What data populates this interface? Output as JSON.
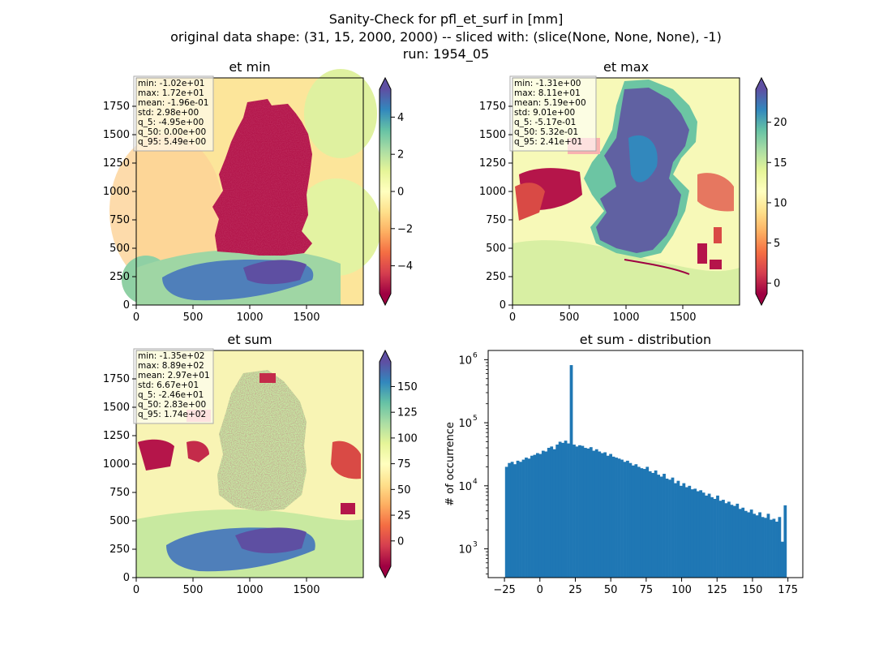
{
  "figure": {
    "title_lines": [
      "Sanity-Check for pfl_et_surf in [mm]",
      "original data shape: (31, 15, 2000, 2000) -- sliced with: (slice(None, None, None), -1)",
      "run: 1954_05"
    ]
  },
  "colors": {
    "bar": "#1f77b4",
    "colormap": "Spectral",
    "colormap_stops": [
      "#9e0142",
      "#d53e4f",
      "#f46d43",
      "#fdae61",
      "#fee08b",
      "#ffffbf",
      "#e6f598",
      "#abdda4",
      "#66c2a5",
      "#3288bd",
      "#5e4fa2"
    ]
  },
  "chart_data": [
    {
      "type": "heatmap",
      "title": "et min",
      "x_ticks": [
        "0",
        "500",
        "1000",
        "1500"
      ],
      "y_ticks": [
        "0",
        "250",
        "500",
        "750",
        "1000",
        "1250",
        "1500",
        "1750"
      ],
      "xlim": [
        0,
        2000
      ],
      "ylim": [
        0,
        2000
      ],
      "colorbar": {
        "ticks": [
          "−4",
          "−2",
          "0",
          "2",
          "4"
        ],
        "tick_values": [
          -4,
          -2,
          0,
          2,
          4
        ],
        "range": [
          -5.5,
          5.5
        ],
        "extend": "both"
      },
      "stats": [
        "min: -1.02e+01",
        "max: 1.72e+01",
        "mean: -1.96e-01",
        "std: 2.98e+00",
        "q_5: -4.95e+00",
        "q_50: 0.00e+00",
        "q_95: 5.49e+00"
      ]
    },
    {
      "type": "heatmap",
      "title": "et max",
      "x_ticks": [
        "0",
        "500",
        "1000",
        "1500"
      ],
      "y_ticks": [
        "0",
        "250",
        "500",
        "750",
        "1000",
        "1250",
        "1500",
        "1750"
      ],
      "xlim": [
        0,
        2000
      ],
      "ylim": [
        0,
        2000
      ],
      "colorbar": {
        "ticks": [
          "0",
          "5",
          "10",
          "15",
          "20"
        ],
        "tick_values": [
          0,
          5,
          10,
          15,
          20
        ],
        "range": [
          -1.3,
          24.1
        ],
        "extend": "both"
      },
      "stats": [
        "min: -1.31e+00",
        "max: 8.11e+01",
        "mean: 5.19e+00",
        "std: 9.01e+00",
        "q_5: -5.17e-01",
        "q_50: 5.32e-01",
        "q_95: 2.41e+01"
      ]
    },
    {
      "type": "heatmap",
      "title": "et sum",
      "x_ticks": [
        "0",
        "500",
        "1000",
        "1500"
      ],
      "y_ticks": [
        "0",
        "250",
        "500",
        "750",
        "1000",
        "1250",
        "1500",
        "1750"
      ],
      "xlim": [
        0,
        2000
      ],
      "ylim": [
        0,
        2000
      ],
      "colorbar": {
        "ticks": [
          "0",
          "25",
          "50",
          "75",
          "100",
          "125",
          "150"
        ],
        "tick_values": [
          0,
          25,
          50,
          75,
          100,
          125,
          150
        ],
        "range": [
          -24.6,
          174
        ],
        "extend": "both"
      },
      "stats": [
        "min: -1.35e+02",
        "max: 8.89e+02",
        "mean: 2.97e+01",
        "std: 6.67e+01",
        "q_5: -2.46e+01",
        "q_50: 2.83e+00",
        "q_95: 1.74e+02"
      ]
    },
    {
      "type": "bar",
      "title": "et sum - distribution",
      "xlabel": "",
      "ylabel": "# of occurrence",
      "yscale": "log",
      "x_ticks": [
        "−25",
        "0",
        "25",
        "50",
        "75",
        "100",
        "125",
        "150",
        "175"
      ],
      "x_tick_values": [
        -25,
        0,
        25,
        50,
        75,
        100,
        125,
        150,
        175
      ],
      "y_ticks": [
        {
          "base": "10",
          "exp": "3",
          "value": 1000
        },
        {
          "base": "10",
          "exp": "4",
          "value": 10000
        },
        {
          "base": "10",
          "exp": "5",
          "value": 100000
        },
        {
          "base": "10",
          "exp": "6",
          "value": 1000000
        }
      ],
      "xlim": [
        -36.5,
        185.5
      ],
      "ylim": [
        350,
        1400000
      ],
      "bins": {
        "start": -24.6,
        "end": 174,
        "count": 100
      },
      "counts": [
        20000,
        23000,
        24000,
        22000,
        25000,
        24000,
        26000,
        28000,
        27000,
        30000,
        31000,
        33000,
        32000,
        36000,
        35000,
        40000,
        42000,
        38000,
        45000,
        50000,
        48000,
        52000,
        47000,
        820000,
        45000,
        42000,
        44000,
        43000,
        40000,
        39000,
        41000,
        36000,
        38000,
        35000,
        33000,
        34000,
        30000,
        32000,
        29000,
        28000,
        27000,
        26000,
        24000,
        25000,
        23000,
        21000,
        22000,
        20000,
        19000,
        18500,
        20000,
        17000,
        16000,
        17500,
        15000,
        14000,
        15500,
        13000,
        12500,
        13500,
        11000,
        12000,
        10000,
        11000,
        9500,
        10000,
        8800,
        9000,
        8200,
        8500,
        7800,
        7000,
        7500,
        6600,
        6200,
        7000,
        5800,
        6000,
        5300,
        5600,
        5000,
        4800,
        5200,
        4300,
        4500,
        4000,
        3800,
        4200,
        3600,
        3400,
        3800,
        3200,
        3100,
        3600,
        2900,
        3000,
        2700,
        3200,
        1300,
        4900
      ]
    }
  ]
}
